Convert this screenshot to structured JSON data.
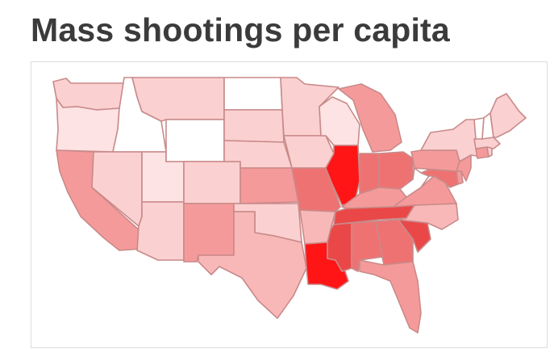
{
  "title": "Mass shootings per capita",
  "colors": {
    "title_text": "#3b3b3b",
    "none": "#ffffff",
    "very_low": "#fde3e3",
    "low": "#fbd0d0",
    "medium_low": "#f9b8b8",
    "medium": "#f59a9a",
    "medium_high": "#ef7272",
    "high": "#ea4848",
    "very_high": "#ff1515",
    "border": "#c98a8a"
  },
  "states": [
    {
      "name": "Washington",
      "level": "low"
    },
    {
      "name": "Oregon",
      "level": "very_low"
    },
    {
      "name": "California",
      "level": "medium"
    },
    {
      "name": "Idaho",
      "level": "none"
    },
    {
      "name": "Nevada",
      "level": "low"
    },
    {
      "name": "Utah",
      "level": "very_low"
    },
    {
      "name": "Arizona",
      "level": "low"
    },
    {
      "name": "Montana",
      "level": "low"
    },
    {
      "name": "Wyoming",
      "level": "none"
    },
    {
      "name": "Colorado",
      "level": "low"
    },
    {
      "name": "New Mexico",
      "level": "medium"
    },
    {
      "name": "North Dakota",
      "level": "none"
    },
    {
      "name": "South Dakota",
      "level": "low"
    },
    {
      "name": "Nebraska",
      "level": "low"
    },
    {
      "name": "Kansas",
      "level": "medium"
    },
    {
      "name": "Oklahoma",
      "level": "low"
    },
    {
      "name": "Texas",
      "level": "medium_low"
    },
    {
      "name": "Minnesota",
      "level": "low"
    },
    {
      "name": "Iowa",
      "level": "low"
    },
    {
      "name": "Missouri",
      "level": "medium_high"
    },
    {
      "name": "Arkansas",
      "level": "medium_low"
    },
    {
      "name": "Louisiana",
      "level": "very_high"
    },
    {
      "name": "Wisconsin",
      "level": "very_low"
    },
    {
      "name": "Illinois",
      "level": "very_high"
    },
    {
      "name": "Michigan",
      "level": "medium"
    },
    {
      "name": "Indiana",
      "level": "medium_high"
    },
    {
      "name": "Ohio",
      "level": "medium_high"
    },
    {
      "name": "Kentucky",
      "level": "medium"
    },
    {
      "name": "Tennessee",
      "level": "high"
    },
    {
      "name": "Mississippi",
      "level": "high"
    },
    {
      "name": "Alabama",
      "level": "medium_high"
    },
    {
      "name": "Georgia",
      "level": "medium_high"
    },
    {
      "name": "Florida",
      "level": "medium"
    },
    {
      "name": "South Carolina",
      "level": "high"
    },
    {
      "name": "North Carolina",
      "level": "medium_low"
    },
    {
      "name": "Virginia",
      "level": "medium"
    },
    {
      "name": "West Virginia",
      "level": "none"
    },
    {
      "name": "Pennsylvania",
      "level": "medium"
    },
    {
      "name": "New York",
      "level": "low"
    },
    {
      "name": "Maryland",
      "level": "medium_high"
    },
    {
      "name": "Delaware",
      "level": "medium"
    },
    {
      "name": "New Jersey",
      "level": "medium"
    },
    {
      "name": "Connecticut",
      "level": "medium"
    },
    {
      "name": "Rhode Island",
      "level": "low"
    },
    {
      "name": "Massachusetts",
      "level": "low"
    },
    {
      "name": "Vermont",
      "level": "none"
    },
    {
      "name": "New Hampshire",
      "level": "none"
    },
    {
      "name": "Maine",
      "level": "low"
    }
  ]
}
